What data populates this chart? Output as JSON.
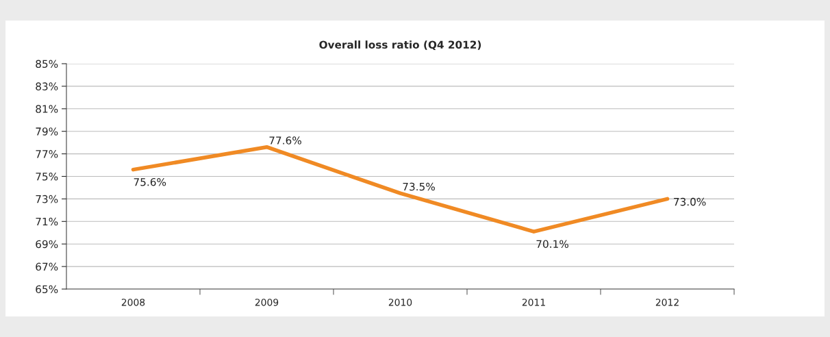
{
  "chart_data": {
    "type": "line",
    "title": "Overall loss ratio (Q4 2012)",
    "categories": [
      "2008",
      "2009",
      "2010",
      "2011",
      "2012"
    ],
    "series": [
      {
        "color": "#f08a24",
        "values": [
          75.6,
          77.6,
          73.5,
          70.1,
          73.0
        ],
        "value_labels": [
          "75.6%",
          "77.6%",
          "73.5%",
          "70.1%",
          "73.0%"
        ]
      }
    ],
    "ylim": [
      65,
      85
    ],
    "yticks": [
      {
        "value": 65,
        "label": "65%"
      },
      {
        "value": 67,
        "label": "67%"
      },
      {
        "value": 69,
        "label": "69%"
      },
      {
        "value": 71,
        "label": "71%"
      },
      {
        "value": 73,
        "label": "73%"
      },
      {
        "value": 75,
        "label": "75%"
      },
      {
        "value": 77,
        "label": "77%"
      },
      {
        "value": 79,
        "label": "79%"
      },
      {
        "value": 81,
        "label": "81%"
      },
      {
        "value": 83,
        "label": "83%"
      },
      {
        "value": 85,
        "label": "85%"
      }
    ],
    "grid": "y",
    "marker": "none",
    "line_style": "solid"
  }
}
